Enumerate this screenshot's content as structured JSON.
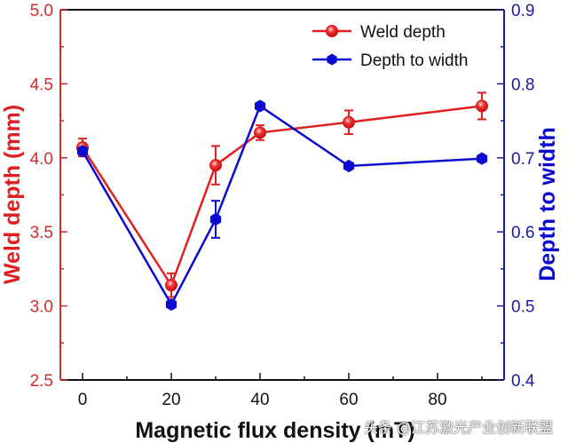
{
  "chart_data": {
    "type": "line",
    "title": "",
    "xlabel": "Magnetic flux density (mT)",
    "xlabel_visible": "Magnetic flux density (mT)",
    "ylabel": "Weld depth (mm)",
    "y2label": "Depth to width",
    "xlim": [
      -5,
      95
    ],
    "ylim": [
      2.5,
      5.0
    ],
    "y2lim": [
      0.4,
      0.9
    ],
    "x_ticks": [
      "0",
      "20",
      "40",
      "60",
      "80"
    ],
    "x_tick_values": [
      0,
      20,
      40,
      60,
      80
    ],
    "y_ticks": [
      "2.5",
      "3.0",
      "3.5",
      "4.0",
      "4.5",
      "5.0"
    ],
    "y_tick_values": [
      2.5,
      3.0,
      3.5,
      4.0,
      4.5,
      5.0
    ],
    "y2_ticks": [
      "0.4",
      "0.5",
      "0.6",
      "0.7",
      "0.8",
      "0.9"
    ],
    "y2_tick_values": [
      0.4,
      0.5,
      0.6,
      0.7,
      0.8,
      0.9
    ],
    "grid": false,
    "legend_position": "top-right",
    "x": [
      0,
      20,
      30,
      40,
      60,
      90
    ],
    "series": [
      {
        "name": "Weld depth",
        "axis": "left",
        "color": "#e02020",
        "marker": "circle",
        "values": [
          4.07,
          3.14,
          3.95,
          4.17,
          4.24,
          4.35
        ],
        "errors": [
          0.06,
          0.08,
          0.13,
          0.05,
          0.08,
          0.09
        ]
      },
      {
        "name": "Depth to width",
        "axis": "right",
        "color": "#0a0ad0",
        "marker": "hexagon",
        "values": [
          0.709,
          0.502,
          0.617,
          0.77,
          0.689,
          0.699
        ],
        "errors": [
          0.004,
          0.004,
          0.025,
          0.004,
          0.004,
          0.004
        ]
      }
    ]
  },
  "colors": {
    "left_axis": "#d42a2a",
    "right_axis": "#1a1aa0",
    "frame": "#111111"
  },
  "watermark": "头条 @江苏激光产业创新联盟"
}
